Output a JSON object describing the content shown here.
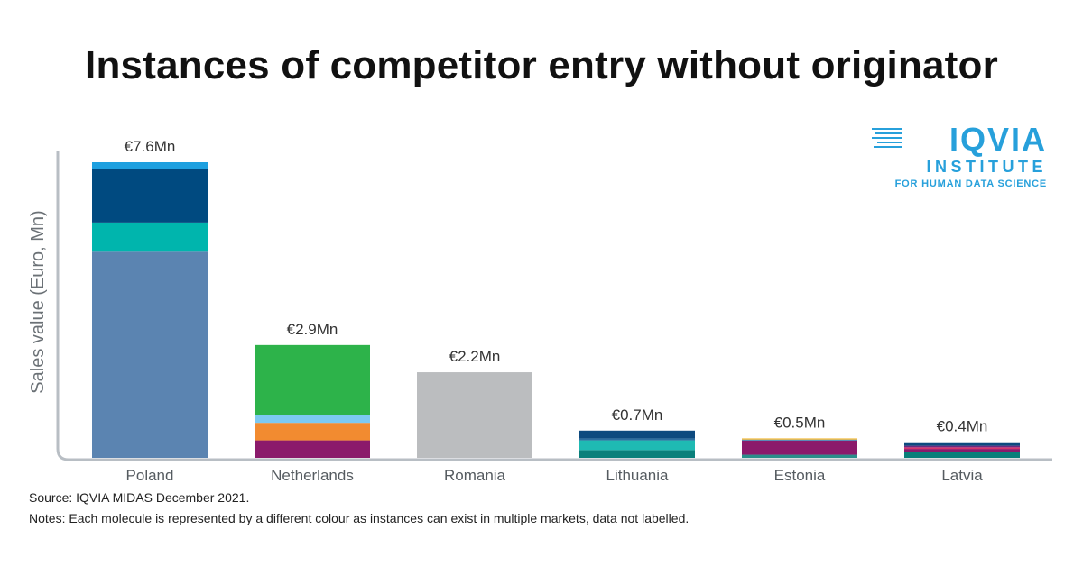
{
  "title": "Instances of competitor entry without originator",
  "logo": {
    "main": "IQVIA",
    "sub": "INSTITUTE",
    "tagline": "FOR HUMAN DATA SCIENCE"
  },
  "footer": {
    "source": "Source: IQVIA MIDAS December 2021.",
    "notes": "Notes: Each molecule is represented by a different colour as instances can exist in multiple markets, data not labelled."
  },
  "chart_data": {
    "type": "bar",
    "stacked": true,
    "ylabel": "Sales value (Euro, Mn)",
    "xlabel": "",
    "grid": false,
    "ylim": [
      0,
      7.6
    ],
    "categories": [
      "Poland",
      "Netherlands",
      "Romania",
      "Lithuania",
      "Estonia",
      "Latvia"
    ],
    "total_labels": [
      "€7.6Mn",
      "€2.9Mn",
      "€2.2Mn",
      "€0.7Mn",
      "€0.5Mn",
      "€0.4Mn"
    ],
    "totals": [
      7.6,
      2.9,
      2.2,
      0.7,
      0.5,
      0.4
    ],
    "stacks": [
      [
        {
          "value": 5.3,
          "color": "#5b84b1"
        },
        {
          "value": 0.75,
          "color": "#00b5ad"
        },
        {
          "value": 1.38,
          "color": "#004a80"
        },
        {
          "value": 0.17,
          "color": "#1ea0e0"
        }
      ],
      [
        {
          "value": 0.45,
          "color": "#8b1a6b"
        },
        {
          "value": 0.45,
          "color": "#f28b30"
        },
        {
          "value": 0.2,
          "color": "#7dc9f0"
        },
        {
          "value": 1.8,
          "color": "#2db34a"
        }
      ],
      [
        {
          "value": 2.2,
          "color": "#bbbdbf"
        }
      ],
      [
        {
          "value": 0.2,
          "color": "#0a7f7a"
        },
        {
          "value": 0.25,
          "color": "#1fbab3"
        },
        {
          "value": 0.05,
          "color": "#2d6ea0"
        },
        {
          "value": 0.2,
          "color": "#0d4a7f"
        }
      ],
      [
        {
          "value": 0.08,
          "color": "#2a8f8a"
        },
        {
          "value": 0.36,
          "color": "#8b1a6b"
        },
        {
          "value": 0.03,
          "color": "#5a8ab8"
        },
        {
          "value": 0.03,
          "color": "#f2b630"
        }
      ],
      [
        {
          "value": 0.15,
          "color": "#0a7f7a"
        },
        {
          "value": 0.08,
          "color": "#8b1a6b"
        },
        {
          "value": 0.04,
          "color": "#d6336c"
        },
        {
          "value": 0.04,
          "color": "#6a2a80"
        },
        {
          "value": 0.09,
          "color": "#0d4a7f"
        }
      ]
    ]
  }
}
